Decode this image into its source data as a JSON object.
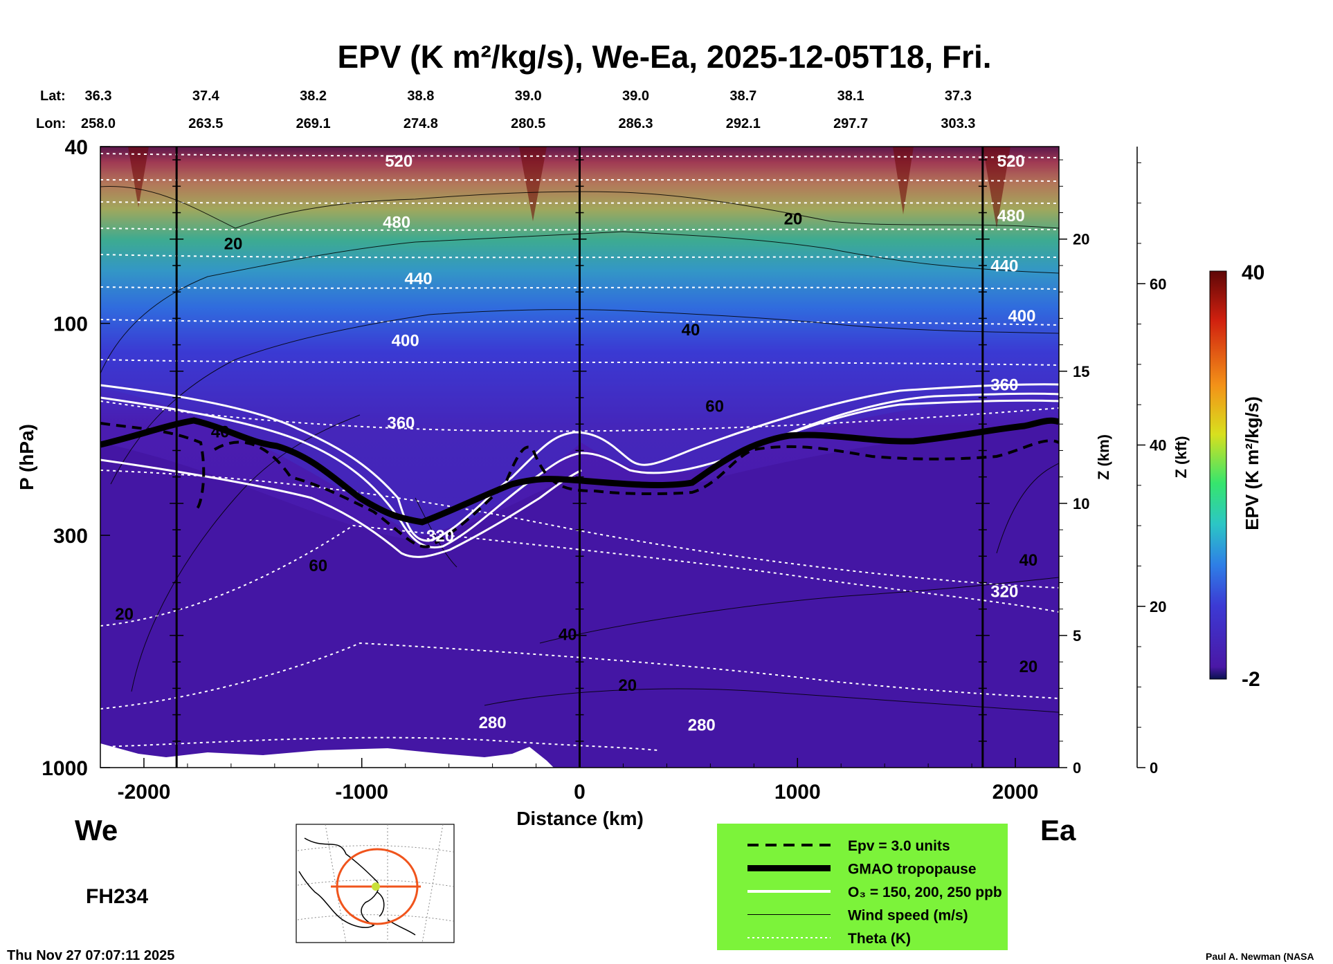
{
  "title": "EPV (K m²/kg/s), We-Ea, 2025-12-05T18, Fri.",
  "lat_label": "Lat:",
  "lon_label": "Lon:",
  "lat_values": [
    "36.3",
    "37.4",
    "38.2",
    "38.8",
    "39.0",
    "39.0",
    "38.7",
    "38.1",
    "37.3"
  ],
  "lon_values": [
    "258.0",
    "263.5",
    "269.1",
    "274.8",
    "280.5",
    "286.3",
    "292.1",
    "297.7",
    "303.3"
  ],
  "left_label": "We",
  "right_label": "Ea",
  "forecast_hour": "FH234",
  "timestamp": "Thu Nov 27 07:07:11 2025",
  "credit": "Paul A. Newman (NASA",
  "colors": {
    "legend_bg": "#7cf33a",
    "cb_top": "#6d0a0a",
    "cb_bottom": "#09124f"
  },
  "chart_data": {
    "type": "contour-cross-section",
    "xlabel": "Distance (km)",
    "ylabel": "P (hPa)",
    "y2label": "Z (km)",
    "y3label": "Z (kft)",
    "xlim": [
      -2200,
      2200
    ],
    "ylim_hpa": [
      1000,
      40
    ],
    "y_scale": "log",
    "x_ticks": [
      -2000,
      -1000,
      0,
      1000,
      2000
    ],
    "y_ticks": [
      1000,
      300,
      100,
      40
    ],
    "z_km_ticks": [
      0,
      5,
      10,
      15,
      20
    ],
    "z_kft_ticks": [
      0,
      20,
      40,
      60
    ],
    "vertical_lines_km": [
      -1850,
      0,
      1850
    ],
    "colorbar": {
      "label": "EPV (K m²/kg/s)",
      "max": "40",
      "min": "-2"
    },
    "theta_labels": [
      {
        "text": "520",
        "x": -830,
        "p": 43
      },
      {
        "text": "480",
        "x": -840,
        "p": 59
      },
      {
        "text": "440",
        "x": -740,
        "p": 79
      },
      {
        "text": "400",
        "x": -800,
        "p": 109
      },
      {
        "text": "360",
        "x": -820,
        "p": 167
      },
      {
        "text": "320",
        "x": -640,
        "p": 300
      },
      {
        "text": "280",
        "x": -400,
        "p": 790
      },
      {
        "text": "280",
        "x": 560,
        "p": 800
      },
      {
        "text": "520",
        "x": 1980,
        "p": 43
      },
      {
        "text": "480",
        "x": 1980,
        "p": 57
      },
      {
        "text": "440",
        "x": 1950,
        "p": 74
      },
      {
        "text": "400",
        "x": 2030,
        "p": 96
      },
      {
        "text": "360",
        "x": 1950,
        "p": 137
      },
      {
        "text": "320",
        "x": 1950,
        "p": 400
      }
    ],
    "wind_labels": [
      {
        "text": "20",
        "x": -1590,
        "p": 66
      },
      {
        "text": "20",
        "x": 980,
        "p": 58
      },
      {
        "text": "40",
        "x": 510,
        "p": 103
      },
      {
        "text": "60",
        "x": 620,
        "p": 153
      },
      {
        "text": "40",
        "x": -1650,
        "p": 175
      },
      {
        "text": "60",
        "x": -1200,
        "p": 350
      },
      {
        "text": "20",
        "x": -2090,
        "p": 450
      },
      {
        "text": "40",
        "x": -55,
        "p": 500
      },
      {
        "text": "20",
        "x": 220,
        "p": 650
      },
      {
        "text": "40",
        "x": 2060,
        "p": 340
      },
      {
        "text": "20",
        "x": 2060,
        "p": 590
      }
    ],
    "legend": [
      {
        "label": "Epv = 3.0 units",
        "style": "dashed"
      },
      {
        "label": "GMAO tropopause",
        "style": "thick"
      },
      {
        "label": "O₃ = 150, 200, 250 ppb",
        "style": "white-double"
      },
      {
        "label": "Wind speed (m/s)",
        "style": "thin"
      },
      {
        "label": "Theta (K)",
        "style": "white-dotted"
      }
    ]
  }
}
